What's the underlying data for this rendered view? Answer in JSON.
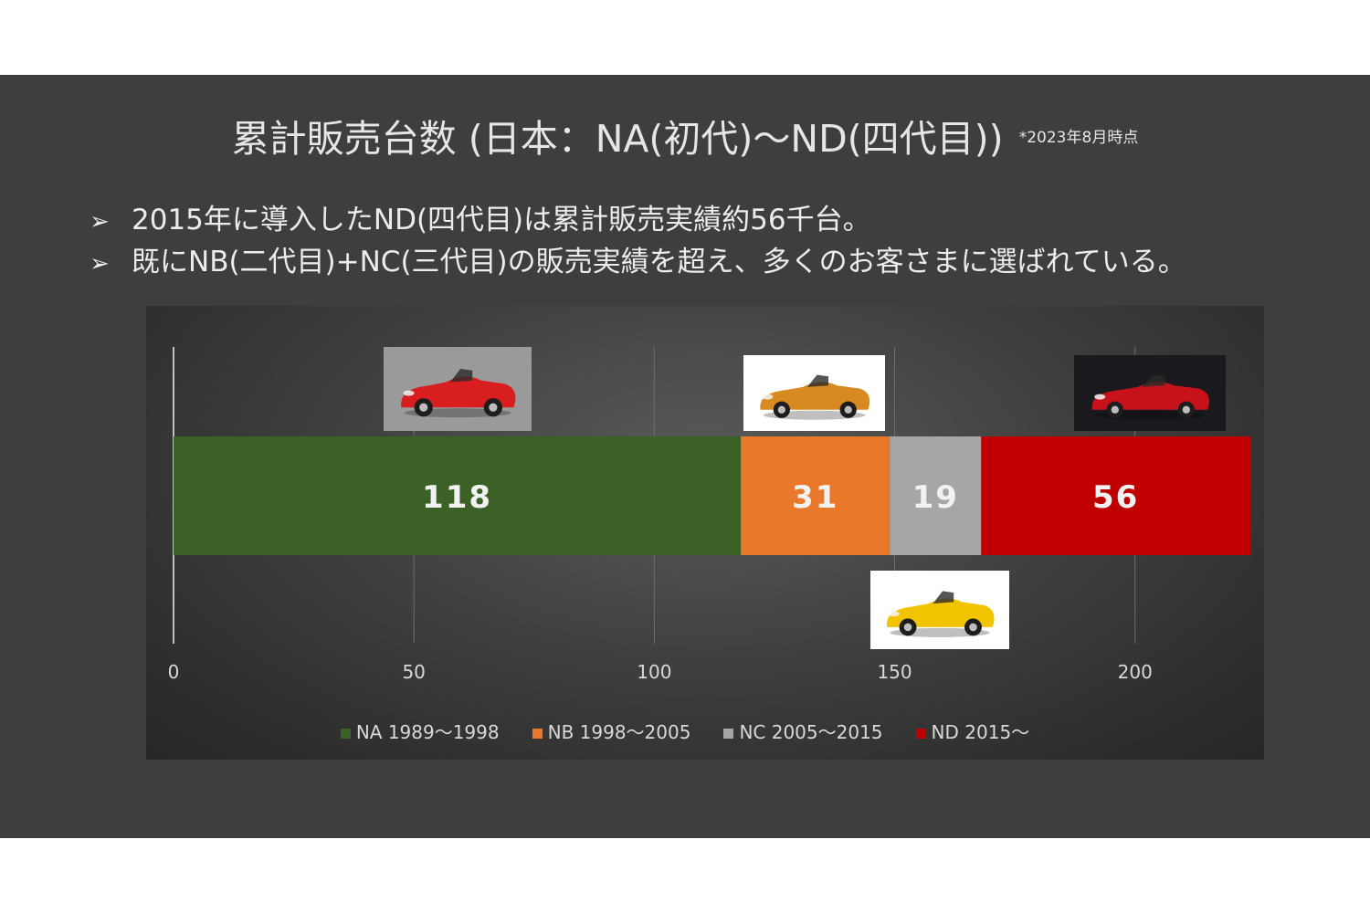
{
  "slide": {
    "title": "累計販売台数 (日本：NA(初代)〜ND(四代目))",
    "title_note": "*2023年8月時点",
    "bullets": [
      "2015年に導入したND(四代目)は累計販売実績約56千台。",
      "既にNB(二代目)+NC(三代目)の販売実績を超え、多くのお客さまに選ばれている。"
    ],
    "bullet_marker": "➢"
  },
  "chart_data": {
    "type": "bar",
    "orientation": "horizontal",
    "stacked": true,
    "categories": [
      ""
    ],
    "series": [
      {
        "name": "NA 1989〜1998",
        "values": [
          118
        ],
        "color": "#3c6126"
      },
      {
        "name": "NB 1998〜2005",
        "values": [
          31
        ],
        "color": "#e9782b"
      },
      {
        "name": "NC 2005〜2015",
        "values": [
          19
        ],
        "color": "#a6a6a6"
      },
      {
        "name": "ND 2015〜",
        "values": [
          56
        ],
        "color": "#c00000"
      }
    ],
    "data_labels": [
      "118",
      "31",
      "19",
      "56"
    ],
    "xlim": [
      0,
      220
    ],
    "x_ticks": [
      0,
      50,
      100,
      150,
      200
    ],
    "x_tick_labels": [
      "0",
      "50",
      "100",
      "150",
      "200"
    ],
    "gridlines": true,
    "legend_position": "bottom",
    "title": "",
    "xlabel": "",
    "ylabel": ""
  },
  "thumbnails": [
    {
      "series": "NA 1989〜1998",
      "icon": "red-roadster-icon",
      "body_color": "#d81e1e",
      "bg_color": "#9a9a9a"
    },
    {
      "series": "NB 1998〜2005",
      "icon": "orange-roadster-icon",
      "body_color": "#d8891f",
      "bg_color": "#ffffff"
    },
    {
      "series": "NC 2005〜2015",
      "icon": "yellow-roadster-icon",
      "body_color": "#f2c300",
      "bg_color": "#ffffff"
    },
    {
      "series": "ND 2015〜",
      "icon": "red-roadster-dark-icon",
      "body_color": "#c8121b",
      "bg_color": "#1a1a1e"
    }
  ]
}
